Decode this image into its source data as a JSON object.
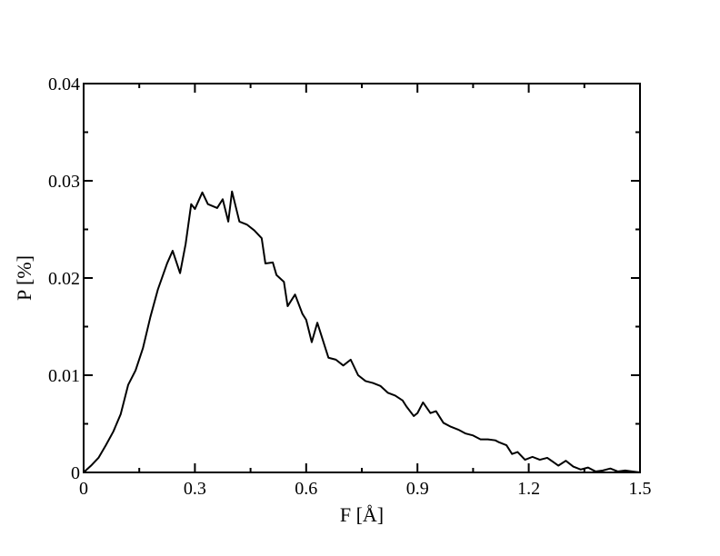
{
  "chart_data": {
    "type": "line",
    "title": "",
    "xlabel": "F [Å]",
    "ylabel": "P [%]",
    "xlim": [
      0,
      1.5
    ],
    "ylim": [
      0,
      0.04
    ],
    "x_ticks": [
      "0",
      "0.3",
      "0.6",
      "0.9",
      "1.2",
      "1.5"
    ],
    "y_ticks": [
      "0",
      "0.01",
      "0.02",
      "0.03",
      "0.04"
    ],
    "grid": false,
    "legend": "none",
    "line_color": "#000000",
    "series": [
      {
        "x": [
          0.0,
          0.02,
          0.04,
          0.06,
          0.08,
          0.1,
          0.11,
          0.12,
          0.14,
          0.16,
          0.18,
          0.2,
          0.225,
          0.24,
          0.26,
          0.275,
          0.29,
          0.3,
          0.32,
          0.335,
          0.36,
          0.375,
          0.39,
          0.4,
          0.42,
          0.44,
          0.46,
          0.48,
          0.49,
          0.51,
          0.52,
          0.54,
          0.55,
          0.57,
          0.59,
          0.6,
          0.615,
          0.63,
          0.645,
          0.66,
          0.68,
          0.7,
          0.72,
          0.74,
          0.76,
          0.78,
          0.8,
          0.82,
          0.84,
          0.86,
          0.87,
          0.89,
          0.9,
          0.915,
          0.935,
          0.95,
          0.97,
          0.99,
          1.01,
          1.03,
          1.05,
          1.07,
          1.09,
          1.11,
          1.12,
          1.14,
          1.155,
          1.17,
          1.19,
          1.21,
          1.23,
          1.25,
          1.265,
          1.28,
          1.3,
          1.32,
          1.34,
          1.36,
          1.38,
          1.4,
          1.42,
          1.44,
          1.46,
          1.48,
          1.5
        ],
        "y": [
          0.0,
          0.0007,
          0.0015,
          0.0028,
          0.0042,
          0.006,
          0.0075,
          0.009,
          0.0105,
          0.0128,
          0.016,
          0.0188,
          0.0215,
          0.0228,
          0.0205,
          0.0235,
          0.0276,
          0.0271,
          0.0288,
          0.0276,
          0.0272,
          0.0281,
          0.0258,
          0.0289,
          0.0258,
          0.0255,
          0.0249,
          0.0241,
          0.0215,
          0.0216,
          0.0203,
          0.0196,
          0.0171,
          0.0183,
          0.0163,
          0.0157,
          0.0134,
          0.0154,
          0.0136,
          0.0118,
          0.0116,
          0.011,
          0.0116,
          0.01,
          0.0094,
          0.0092,
          0.0089,
          0.0082,
          0.0079,
          0.0074,
          0.0068,
          0.0058,
          0.0061,
          0.0072,
          0.0061,
          0.0063,
          0.0051,
          0.0047,
          0.0044,
          0.004,
          0.0038,
          0.0034,
          0.0034,
          0.0033,
          0.0031,
          0.0028,
          0.0019,
          0.0021,
          0.0013,
          0.0016,
          0.0013,
          0.0015,
          0.0011,
          0.0007,
          0.0012,
          0.0006,
          0.0003,
          0.0005,
          0.0001,
          0.0002,
          0.0004,
          0.0001,
          0.0002,
          0.0001,
          0.0
        ]
      }
    ]
  }
}
